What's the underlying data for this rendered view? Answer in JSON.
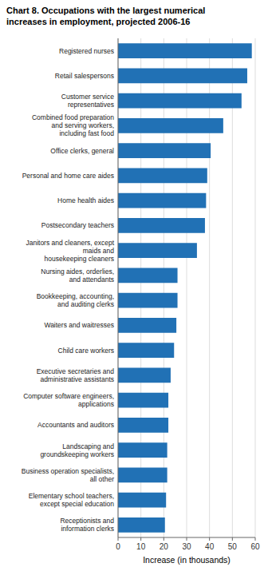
{
  "chart_data": {
    "type": "bar",
    "orientation": "horizontal",
    "title": "Chart 8. Occupations with the largest numerical\nincreases in employment, projected 2006-16",
    "xlabel": "Increase (in thousands)",
    "categories": [
      "Registered nurses",
      "Retail salespersons",
      "Customer service\nrepresentatives",
      "Combined food preparation\nand serving workers,\nincluding fast food",
      "Office clerks, general",
      "Personal and home care aides",
      "Home health aides",
      "Postsecondary teachers",
      "Janitors and cleaners, except\nmaids and\nhousekeeping cleaners",
      "Nursing aides, orderlies,\nand attendants",
      "Bookkeeping, accounting,\nand auditing clerks",
      "Waiters and waitresses",
      "Child care workers",
      "Executive secretaries and\nadministrative assistants",
      "Computer software engineers,\napplications",
      "Accountants and auditors",
      "Landscaping and\ngroundskeeping workers",
      "Business operation specialists,\nall other",
      "Elementary school teachers,\nexcept special education",
      "Receptionists and\ninformation clerks"
    ],
    "values": [
      58.5,
      56.5,
      54.0,
      46.0,
      40.5,
      39.0,
      38.5,
      38.0,
      34.5,
      26.0,
      26.0,
      25.5,
      24.5,
      23.0,
      22.0,
      22.0,
      21.5,
      21.5,
      21.0,
      20.5
    ],
    "color": "#2171b5",
    "xlim": [
      0,
      60
    ],
    "xticks": [
      0,
      10,
      20,
      30,
      40,
      50,
      60
    ],
    "grid": true
  }
}
